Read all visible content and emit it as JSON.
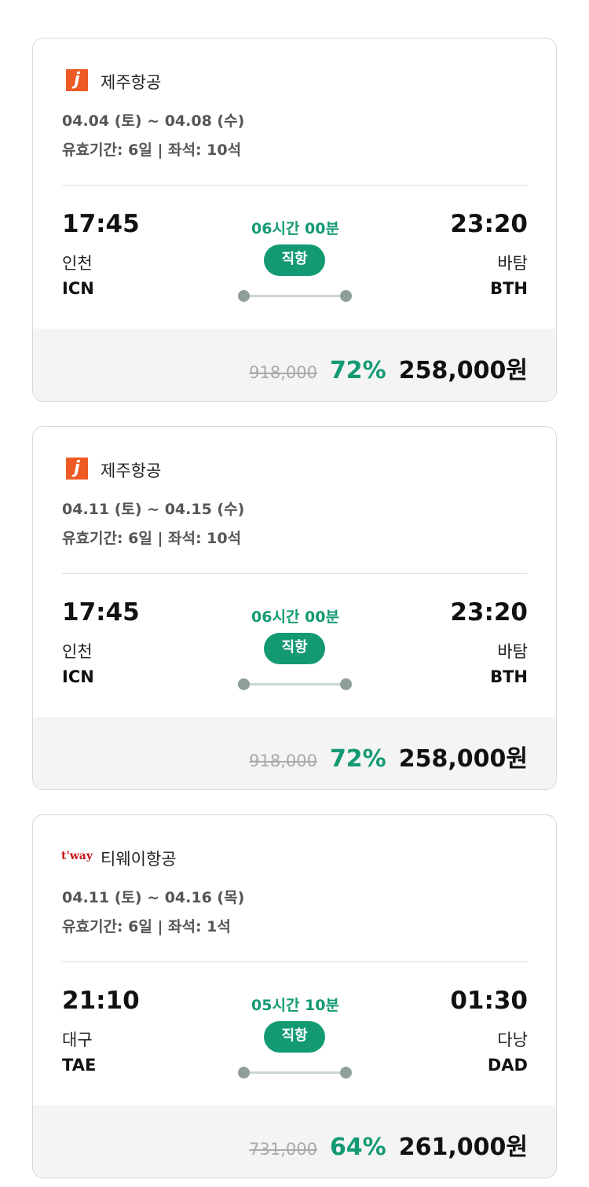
{
  "cards": [
    {
      "logo": "j",
      "airline": "제주항공",
      "dates": "04.04 (토) ~ 04.08 (수)",
      "validity": "유효기간: 6일 | 좌석: 10석",
      "depart_time": "17:45",
      "depart_city": "인천",
      "depart_code": "ICN",
      "duration": "06시간 00분",
      "badge": "직항",
      "arrive_time": "23:20",
      "arrive_city": "바탐",
      "arrive_code": "BTH",
      "original_price": "918,000",
      "discount": "72%",
      "price": "258,000원"
    },
    {
      "logo": "j",
      "airline": "제주항공",
      "dates": "04.11 (토) ~ 04.15 (수)",
      "validity": "유효기간: 6일 | 좌석: 10석",
      "depart_time": "17:45",
      "depart_city": "인천",
      "depart_code": "ICN",
      "duration": "06시간 00분",
      "badge": "직항",
      "arrive_time": "23:20",
      "arrive_city": "바탐",
      "arrive_code": "BTH",
      "original_price": "918,000",
      "discount": "72%",
      "price": "258,000원"
    },
    {
      "logo": "t'way",
      "airline": "티웨이항공",
      "dates": "04.11 (토) ~ 04.16 (목)",
      "validity": "유효기간: 6일 | 좌석: 1석",
      "depart_time": "21:10",
      "depart_city": "대구",
      "depart_code": "TAE",
      "duration": "05시간 10분",
      "badge": "직항",
      "arrive_time": "01:30",
      "arrive_city": "다낭",
      "arrive_code": "DAD",
      "original_price": "731,000",
      "discount": "64%",
      "price": "261,000원"
    }
  ]
}
